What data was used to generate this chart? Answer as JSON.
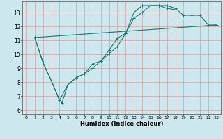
{
  "xlabel": "Humidex (Indice chaleur)",
  "background_color": "#cce8ee",
  "grid_color": "#d4a0a0",
  "line_color": "#1a7a6e",
  "xlim": [
    -0.5,
    23.5
  ],
  "ylim": [
    5.7,
    13.8
  ],
  "xticks": [
    0,
    1,
    2,
    3,
    4,
    5,
    6,
    7,
    8,
    9,
    10,
    11,
    12,
    13,
    14,
    15,
    16,
    17,
    18,
    19,
    20,
    21,
    22,
    23
  ],
  "yticks": [
    6,
    7,
    8,
    9,
    10,
    11,
    12,
    13
  ],
  "line1_x": [
    1,
    2,
    3,
    4,
    4.3,
    5,
    6,
    7,
    8,
    9,
    10,
    11,
    12,
    13,
    14,
    15,
    16,
    17,
    18
  ],
  "line1_y": [
    11.2,
    9.4,
    8.1,
    6.7,
    6.5,
    7.8,
    8.3,
    8.6,
    9.3,
    9.5,
    10.05,
    10.55,
    11.5,
    13.0,
    13.5,
    13.5,
    13.5,
    13.3,
    13.2
  ],
  "line2_x": [
    1,
    2,
    3,
    4,
    5,
    6,
    7,
    8,
    9,
    10,
    11,
    12,
    13,
    14,
    15,
    16,
    17,
    18,
    19,
    20,
    21,
    22,
    23
  ],
  "line2_y": [
    11.2,
    9.4,
    8.1,
    6.7,
    7.8,
    8.3,
    8.6,
    9.0,
    9.5,
    10.3,
    11.15,
    11.5,
    12.6,
    13.0,
    13.5,
    13.5,
    13.5,
    13.3,
    12.8,
    12.8,
    12.8,
    12.1,
    12.1
  ],
  "line3_x": [
    1,
    23
  ],
  "line3_y": [
    11.2,
    12.1
  ]
}
